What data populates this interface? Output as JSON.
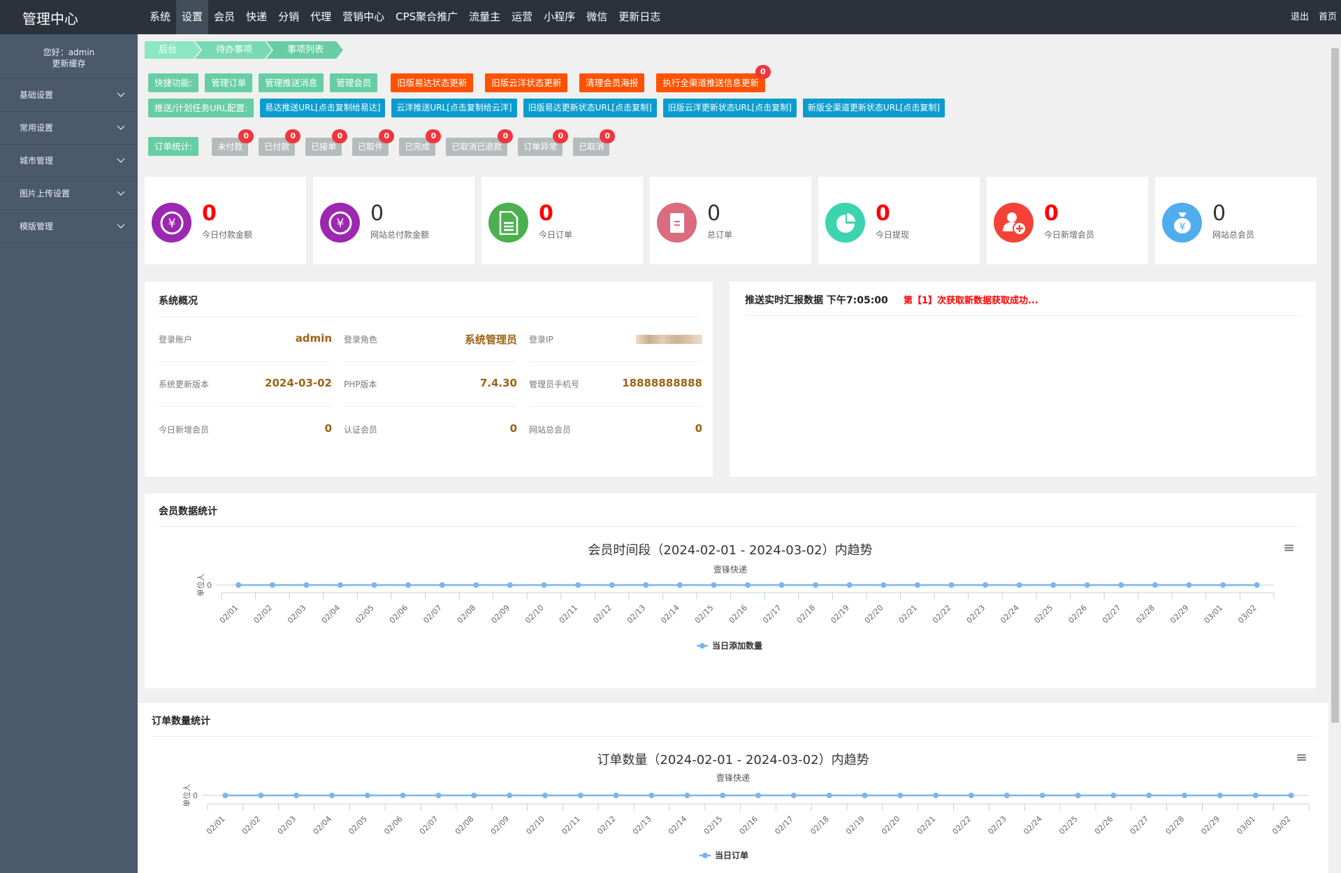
{
  "logo": "管理中心",
  "nav": [
    "系统",
    "设置",
    "会员",
    "快递",
    "分销",
    "代理",
    "营销中心",
    "CPS聚合推广",
    "流量主",
    "运营",
    "小程序",
    "微信",
    "更新日志"
  ],
  "nav_active": 1,
  "top_right": {
    "logout": "退出",
    "home": "首页"
  },
  "sidebar": {
    "greeting": "您好：admin",
    "refresh": "更新缓存",
    "items": [
      "基础设置",
      "常用设置",
      "城市管理",
      "图片上传设置",
      "模版管理"
    ]
  },
  "breadcrumbs": [
    "后台首页",
    "待办事项",
    "事项列表"
  ],
  "quick": {
    "label": "快捷功能:",
    "green": [
      "管理订单",
      "管理推送消息",
      "管理会员"
    ],
    "orange": [
      "旧版易达状态更新",
      "旧版云洋状态更新",
      "清理会员海报",
      "执行全渠道推送信息更新"
    ],
    "badge": "0"
  },
  "urls": {
    "label": "推送/计划任务URL配置:",
    "buttons": [
      "易达推送URL[点击复制给易达]",
      "云洋推送URL[点击复制给云洋]",
      "旧版易达更新状态URL[点击复制]",
      "旧版云洋更新状态URL[点击复制]",
      "新版全渠道更新状态URL[点击复制]"
    ]
  },
  "order_stats": {
    "label": "订单统计:",
    "items": [
      {
        "label": "未付款",
        "count": "0"
      },
      {
        "label": "已付款",
        "count": "0"
      },
      {
        "label": "已接单",
        "count": "0"
      },
      {
        "label": "已取件",
        "count": "0"
      },
      {
        "label": "已完成",
        "count": "0"
      },
      {
        "label": "已取消已退款",
        "count": "0"
      },
      {
        "label": "订单异常",
        "count": "0"
      },
      {
        "label": "已取消",
        "count": "0"
      }
    ]
  },
  "cards": [
    {
      "value": "0",
      "label": "今日付款金额",
      "icon": "yen-icon",
      "color": "#9c27b0",
      "highlight": true
    },
    {
      "value": "0",
      "label": "网站总付款金额",
      "icon": "yen-icon",
      "color": "#9c27b0",
      "highlight": false
    },
    {
      "value": "0",
      "label": "今日订单",
      "icon": "document-icon",
      "color": "#4caf50",
      "highlight": true
    },
    {
      "value": "0",
      "label": "总订单",
      "icon": "list-icon",
      "color": "#db6b7e",
      "highlight": false
    },
    {
      "value": "0",
      "label": "今日提现",
      "icon": "pie-chart-icon",
      "color": "#3dd3b0",
      "highlight": true
    },
    {
      "value": "0",
      "label": "今日新增会员",
      "icon": "add-user-icon",
      "color": "#f44336",
      "highlight": true
    },
    {
      "value": "0",
      "label": "网站总会员",
      "icon": "money-bag-icon",
      "color": "#4fadee",
      "highlight": false
    }
  ],
  "overview": {
    "title": "系统概况",
    "rows": [
      [
        {
          "k": "登录账户",
          "v": "admin"
        },
        {
          "k": "登录角色",
          "v": "系统管理员"
        },
        {
          "k": "登录IP",
          "v": ""
        }
      ],
      [
        {
          "k": "系统更新版本",
          "v": "2024-03-02"
        },
        {
          "k": "PHP版本",
          "v": "7.4.30"
        },
        {
          "k": "管理员手机号",
          "v": "18888888888"
        }
      ],
      [
        {
          "k": "今日新增会员",
          "v": "0"
        },
        {
          "k": "认证会员",
          "v": "0"
        },
        {
          "k": "网站总会员",
          "v": "0"
        }
      ]
    ]
  },
  "push": {
    "title": "推送实时汇报数据 下午7:05:00",
    "status": "第【1】次获取新数据获取成功..."
  },
  "member_panel": {
    "title": "会员数据统计"
  },
  "order_panel": {
    "title": "订单数量统计"
  },
  "chart_data": [
    {
      "type": "line",
      "title": "会员时间段（2024-02-01 - 2024-03-02）内趋势",
      "subtitle": "壹锋快递",
      "ylabel": "单位人",
      "yticks": [
        "0"
      ],
      "categories": [
        "02/01",
        "02/02",
        "02/03",
        "02/04",
        "02/05",
        "02/06",
        "02/07",
        "02/08",
        "02/09",
        "02/10",
        "02/11",
        "02/12",
        "02/13",
        "02/14",
        "02/15",
        "02/16",
        "02/17",
        "02/18",
        "02/19",
        "02/20",
        "02/21",
        "02/22",
        "02/23",
        "02/24",
        "02/25",
        "02/26",
        "02/27",
        "02/28",
        "02/29",
        "03/01",
        "03/02"
      ],
      "series": [
        {
          "name": "当日添加数量",
          "color": "#7cb5ec",
          "values": [
            0,
            0,
            0,
            0,
            0,
            0,
            0,
            0,
            0,
            0,
            0,
            0,
            0,
            0,
            0,
            0,
            0,
            0,
            0,
            0,
            0,
            0,
            0,
            0,
            0,
            0,
            0,
            0,
            0,
            0,
            0
          ]
        }
      ],
      "legend": "bottom"
    },
    {
      "type": "line",
      "title": "订单数量（2024-02-01 - 2024-03-02）内趋势",
      "subtitle": "壹锋快递",
      "ylabel": "单位人",
      "yticks": [
        "0"
      ],
      "categories": [
        "02/01",
        "02/02",
        "02/03",
        "02/04",
        "02/05",
        "02/06",
        "02/07",
        "02/08",
        "02/09",
        "02/10",
        "02/11",
        "02/12",
        "02/13",
        "02/14",
        "02/15",
        "02/16",
        "02/17",
        "02/18",
        "02/19",
        "02/20",
        "02/21",
        "02/22",
        "02/23",
        "02/24",
        "02/25",
        "02/26",
        "02/27",
        "02/28",
        "02/29",
        "03/01",
        "03/02"
      ],
      "series": [
        {
          "name": "当日订单",
          "color": "#7cb5ec",
          "values": [
            0,
            0,
            0,
            0,
            0,
            0,
            0,
            0,
            0,
            0,
            0,
            0,
            0,
            0,
            0,
            0,
            0,
            0,
            0,
            0,
            0,
            0,
            0,
            0,
            0,
            0,
            0,
            0,
            0,
            0,
            0
          ]
        }
      ],
      "legend": "bottom"
    }
  ]
}
